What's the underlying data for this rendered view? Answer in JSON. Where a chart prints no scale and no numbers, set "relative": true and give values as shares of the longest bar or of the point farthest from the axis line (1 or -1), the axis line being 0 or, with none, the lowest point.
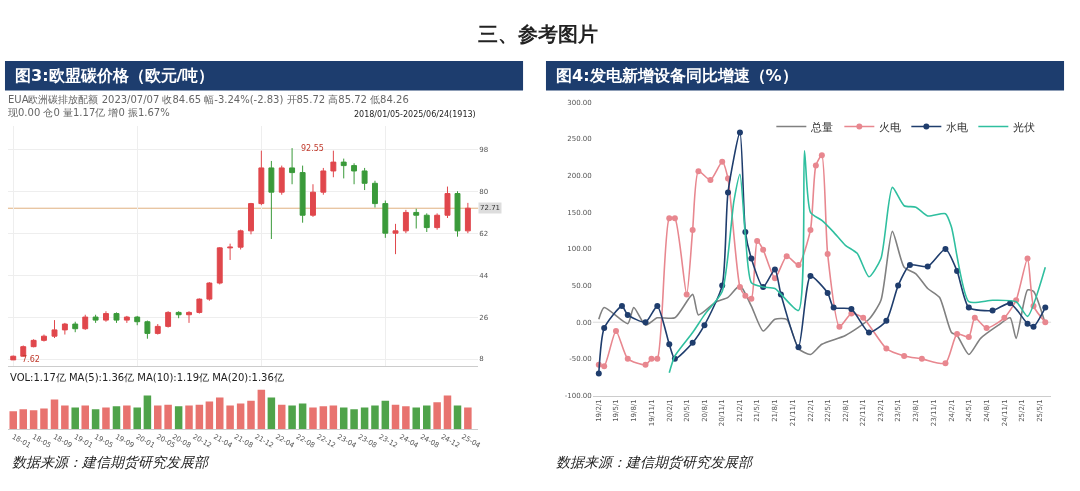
{
  "chart_data": [
    {
      "type": "candlestick",
      "title": "图3:欧盟碳价格（欧元/吨）",
      "subtitle": "EUA欧洲碳排放配额 2023/07/07 收84.65 幅-3.24%(-2.83) 开85.72 高85.72 低84.26 现0.00 仓0 量1.17亿 增0 振1.67%",
      "x": [
        "2018-01",
        "2018-03",
        "2018-05",
        "2018-07",
        "2018-09",
        "2018-11",
        "2019-01",
        "2019-03",
        "2019-05",
        "2019-07",
        "2019-09",
        "2019-11",
        "2020-01",
        "2020-03",
        "2020-05",
        "2020-07",
        "2020-09",
        "2020-11",
        "2021-01",
        "2021-03",
        "2021-05",
        "2021-07",
        "2021-09",
        "2021-11",
        "2022-01",
        "2022-03",
        "2022-05",
        "2022-07",
        "2022-09",
        "2022-11",
        "2023-01",
        "2023-03",
        "2023-05",
        "2023-07",
        "2023-09",
        "2023-11",
        "2024-01",
        "2024-03",
        "2024-05",
        "2024-07",
        "2024-09",
        "2024-11",
        "2025-01",
        "2025-03",
        "2025-05"
      ],
      "ohlc": [
        [
          7.62,
          9.5,
          7.62,
          9.2
        ],
        [
          9.2,
          13.8,
          9.0,
          13.3
        ],
        [
          13.3,
          16.5,
          13.0,
          16.0
        ],
        [
          16.0,
          18.5,
          15.5,
          17.8
        ],
        [
          17.8,
          24.7,
          17.0,
          20.5
        ],
        [
          20.5,
          23.5,
          18.5,
          23.0
        ],
        [
          23.0,
          24.0,
          19.5,
          21.0
        ],
        [
          21.0,
          27.0,
          20.5,
          26.0
        ],
        [
          26.0,
          27.0,
          23.5,
          24.7
        ],
        [
          24.7,
          28.5,
          24.0,
          27.5
        ],
        [
          27.5,
          28.0,
          23.5,
          24.7
        ],
        [
          24.7,
          26.5,
          23.5,
          26.0
        ],
        [
          26.0,
          26.5,
          22.5,
          24.0
        ],
        [
          24.0,
          24.5,
          16.7,
          19.0
        ],
        [
          19.0,
          23.0,
          18.5,
          22.0
        ],
        [
          22.0,
          28.5,
          21.5,
          28.0
        ],
        [
          28.0,
          28.5,
          25.5,
          27.0
        ],
        [
          27.0,
          28.5,
          23.5,
          28.0
        ],
        [
          28.0,
          34.0,
          27.5,
          33.7
        ],
        [
          33.7,
          41.0,
          33.0,
          40.6
        ],
        [
          40.6,
          56.0,
          40.0,
          55.7
        ],
        [
          55.7,
          57.5,
          50.5,
          56.0
        ],
        [
          56.0,
          63.5,
          55.0,
          63.0
        ],
        [
          63.0,
          75.0,
          61.5,
          74.7
        ],
        [
          74.7,
          97.4,
          74.0,
          90.0
        ],
        [
          90.0,
          93.0,
          59.5,
          79.6
        ],
        [
          79.6,
          91.0,
          78.5,
          90.0
        ],
        [
          90.0,
          98.5,
          83.0,
          88.0
        ],
        [
          88.0,
          91.0,
          66.5,
          69.7
        ],
        [
          69.7,
          83.0,
          69.0,
          79.6
        ],
        [
          79.6,
          90.0,
          78.5,
          88.7
        ],
        [
          88.7,
          97.4,
          86.0,
          92.5
        ],
        [
          92.5,
          94.0,
          85.5,
          91.0
        ],
        [
          91.0,
          92.0,
          83.0,
          88.7
        ],
        [
          88.7,
          90.0,
          80.5,
          83.4
        ],
        [
          83.4,
          84.5,
          73.0,
          74.7
        ],
        [
          74.7,
          76.0,
          60.0,
          62.0
        ],
        [
          62.0,
          66.0,
          53.0,
          63.0
        ],
        [
          63.0,
          72.0,
          62.0,
          70.9
        ],
        [
          70.9,
          72.5,
          64.0,
          69.7
        ],
        [
          69.7,
          70.5,
          62.5,
          64.4
        ],
        [
          64.4,
          70.5,
          63.5,
          69.7
        ],
        [
          69.7,
          82.0,
          68.5,
          79.0
        ],
        [
          79.0,
          80.0,
          60.5,
          63.0
        ],
        [
          63.0,
          75.0,
          62.0,
          72.71
        ]
      ],
      "xlim": [
        "2017-12",
        "2025-07"
      ],
      "ylim": [
        5,
        108
      ],
      "yticks": [
        8,
        26,
        44,
        62,
        80,
        98
      ],
      "grid": true,
      "tick_labels": "y",
      "ref_lines": [
        {
          "axis": "y",
          "value": 72.71,
          "label": "72.71",
          "color": "#e0b080"
        }
      ],
      "annotations": [
        "三、参考图片",
        "2018/01/05-2025/06/24(1913)",
        "数据来源：建信期货研究发展部",
        {
          "text": "7.62",
          "x": "2018-01",
          "y": 7.62
        },
        {
          "text": "92.55",
          "x": "2022-07",
          "y": 98.5
        }
      ]
    },
    {
      "type": "bar",
      "relative": true,
      "annotations": [
        "VOL:1.17亿 MA(5):1.36亿 MA(10):1.19亿 MA(20):1.36亿"
      ],
      "x": [
        "2018-01",
        "2018-03",
        "2018-05",
        "2018-07",
        "2018-09",
        "2018-11",
        "2019-01",
        "2019-03",
        "2019-05",
        "2019-07",
        "2019-09",
        "2019-11",
        "2020-01",
        "2020-03",
        "2020-05",
        "2020-07",
        "2020-09",
        "2020-11",
        "2021-01",
        "2021-03",
        "2021-05",
        "2021-07",
        "2021-09",
        "2021-11",
        "2022-01",
        "2022-03",
        "2022-05",
        "2022-07",
        "2022-09",
        "2022-11",
        "2023-01",
        "2023-03",
        "2023-05",
        "2023-07",
        "2023-09",
        "2023-11",
        "2024-01",
        "2024-03",
        "2024-05",
        "2024-07",
        "2024-09",
        "2024-11",
        "2025-01",
        "2025-03",
        "2025-05"
      ],
      "values": [
        0.45,
        0.5,
        0.48,
        0.52,
        0.75,
        0.6,
        0.55,
        0.6,
        0.5,
        0.55,
        0.58,
        0.6,
        0.55,
        0.85,
        0.6,
        0.62,
        0.58,
        0.6,
        0.62,
        0.7,
        0.8,
        0.6,
        0.65,
        0.72,
        1.0,
        0.8,
        0.62,
        0.6,
        0.65,
        0.55,
        0.58,
        0.6,
        0.55,
        0.5,
        0.55,
        0.6,
        0.72,
        0.62,
        0.58,
        0.55,
        0.6,
        0.68,
        0.85,
        0.6,
        0.55
      ],
      "colors": [
        "#e8736f",
        "#e8736f",
        "#e8736f",
        "#e8736f",
        "#e8736f",
        "#e8736f",
        "#4fa34a",
        "#e8736f",
        "#4fa34a",
        "#e8736f",
        "#4fa34a",
        "#e8736f",
        "#4fa34a",
        "#4fa34a",
        "#e8736f",
        "#e8736f",
        "#4fa34a",
        "#e8736f",
        "#e8736f",
        "#e8736f",
        "#e8736f",
        "#e8736f",
        "#e8736f",
        "#e8736f",
        "#e8736f",
        "#4fa34a",
        "#e8736f",
        "#4fa34a",
        "#4fa34a",
        "#e8736f",
        "#e8736f",
        "#e8736f",
        "#4fa34a",
        "#4fa34a",
        "#4fa34a",
        "#4fa34a",
        "#4fa34a",
        "#e8736f",
        "#e8736f",
        "#4fa34a",
        "#4fa34a",
        "#e8736f",
        "#e8736f",
        "#4fa34a",
        "#e8736f"
      ],
      "xlim": [
        "2017-12",
        "2025-07"
      ],
      "xticks": [
        {
          "value": "2018-01",
          "label": "18-01"
        },
        {
          "value": "2018-05",
          "label": "18-05"
        },
        {
          "value": "2018-09",
          "label": "18-09"
        },
        {
          "value": "2019-01",
          "label": "19-01"
        },
        {
          "value": "2019-05",
          "label": "19-05"
        },
        {
          "value": "2019-09",
          "label": "19-09"
        },
        {
          "value": "2020-01",
          "label": "20-01"
        },
        {
          "value": "2020-05",
          "label": "20-05"
        },
        {
          "value": "2020-08",
          "label": "20-08"
        },
        {
          "value": "2020-12",
          "label": "20-12"
        },
        {
          "value": "2021-04",
          "label": "21-04"
        },
        {
          "value": "2021-08",
          "label": "21-08"
        },
        {
          "value": "2021-12",
          "label": "21-12"
        },
        {
          "value": "2022-04",
          "label": "22-04"
        },
        {
          "value": "2022-08",
          "label": "22-08"
        },
        {
          "value": "2022-12",
          "label": "22-12"
        },
        {
          "value": "2023-04",
          "label": "23-04"
        },
        {
          "value": "2023-08",
          "label": "23-08"
        },
        {
          "value": "2023-12",
          "label": "23-12"
        },
        {
          "value": "2024-04",
          "label": "24-04"
        },
        {
          "value": "2024-08",
          "label": "24-08"
        },
        {
          "value": "2024-12",
          "label": "24-12"
        },
        {
          "value": "2025-04",
          "label": "25-04"
        }
      ]
    },
    {
      "type": "line",
      "title": "图4:发电新增设备同比增速（%）",
      "legend": "top right",
      "line_style": "solid",
      "annotations": [
        "数据来源：建信期货研究发展部"
      ],
      "series": [
        {
          "name": "总量",
          "color": "#808080",
          "x": [
            "2019-02",
            "2019-03",
            "2019-07",
            "2019-08",
            "2019-10",
            "2019-12",
            "2020-03",
            "2020-06",
            "2020-07",
            "2020-10",
            "2020-12",
            "2021-02",
            "2021-04",
            "2021-06",
            "2021-08",
            "2021-10",
            "2021-12",
            "2022-02",
            "2022-04",
            "2022-08",
            "2022-12",
            "2023-02",
            "2023-04",
            "2023-06",
            "2023-08",
            "2023-10",
            "2023-12",
            "2024-02",
            "2024-03",
            "2024-05",
            "2024-07",
            "2024-10",
            "2024-12",
            "2025-01",
            "2025-03",
            "2025-04",
            "2025-06"
          ],
          "values": [
            4,
            20,
            -2,
            20,
            -4,
            6,
            6,
            38,
            10,
            28,
            34,
            50,
            22,
            -12,
            4,
            4,
            -36,
            -44,
            -30,
            -18,
            4,
            30,
            124,
            75,
            66,
            46,
            34,
            -14,
            -18,
            -44,
            -22,
            -4,
            6,
            -22,
            44,
            42,
            -2
          ]
        },
        {
          "name": "火电",
          "color": "#e8878f",
          "marker": "circle",
          "x": [
            "2019-02",
            "2019-03",
            "2019-05",
            "2019-07",
            "2019-10",
            "2019-11",
            "2019-12",
            "2020-02",
            "2020-03",
            "2020-05",
            "2020-06",
            "2020-07",
            "2020-09",
            "2020-11",
            "2020-12",
            "2021-02",
            "2021-03",
            "2021-04",
            "2021-05",
            "2021-06",
            "2021-08",
            "2021-10",
            "2021-12",
            "2022-02",
            "2022-03",
            "2022-04",
            "2022-05",
            "2022-07",
            "2022-09",
            "2022-11",
            "2023-03",
            "2023-06",
            "2023-09",
            "2024-01",
            "2024-03",
            "2024-05",
            "2024-06",
            "2024-08",
            "2024-11",
            "2025-01",
            "2025-03",
            "2025-04",
            "2025-06"
          ],
          "values": [
            -58,
            -60,
            -12,
            -50,
            -58,
            -50,
            -50,
            142,
            142,
            38,
            126,
            206,
            194,
            219,
            196,
            48,
            36,
            32,
            111,
            99,
            60,
            90,
            78,
            126,
            214,
            228,
            93,
            -6,
            12,
            6,
            -36,
            -46,
            -50,
            -56,
            -16,
            -20,
            6,
            -8,
            6,
            30,
            87,
            22,
            0
          ]
        },
        {
          "name": "水电",
          "color": "#1f3d6d",
          "marker": "circle",
          "x": [
            "2019-02",
            "2019-03",
            "2019-06",
            "2019-07",
            "2019-10",
            "2019-12",
            "2020-02",
            "2020-03",
            "2020-06",
            "2020-08",
            "2020-11",
            "2020-12",
            "2021-02",
            "2021-03",
            "2021-04",
            "2021-06",
            "2021-08",
            "2021-09",
            "2021-12",
            "2022-02",
            "2022-05",
            "2022-06",
            "2022-09",
            "2022-12",
            "2023-03",
            "2023-05",
            "2023-07",
            "2023-10",
            "2024-01",
            "2024-03",
            "2024-05",
            "2024-09",
            "2024-12",
            "2025-03",
            "2025-04",
            "2025-06"
          ],
          "values": [
            -70,
            -8,
            22,
            10,
            0,
            22,
            -30,
            -50,
            -28,
            -4,
            50,
            177,
            259,
            123,
            87,
            48,
            72,
            38,
            -34,
            63,
            40,
            20,
            18,
            -14,
            2,
            50,
            78,
            76,
            100,
            70,
            20,
            16,
            26,
            -2,
            -6,
            20
          ]
        },
        {
          "name": "光伏",
          "color": "#2fbf9f",
          "x": [
            "2020-02",
            "2020-03",
            "2020-06",
            "2020-08",
            "2020-11",
            "2021-01",
            "2021-02",
            "2021-03",
            "2021-04",
            "2021-06",
            "2021-08",
            "2021-12",
            "2022-01",
            "2022-02",
            "2022-04",
            "2022-06",
            "2022-08",
            "2022-10",
            "2022-12",
            "2023-02",
            "2023-04",
            "2023-06",
            "2023-08",
            "2023-10",
            "2024-01",
            "2024-02",
            "2024-05",
            "2024-09",
            "2025-01",
            "2025-03",
            "2025-06"
          ],
          "values": [
            -69,
            -46,
            -14,
            10,
            42,
            166,
            202,
            118,
            54,
            48,
            46,
            16,
            234,
            150,
            139,
            123,
            105,
            94,
            62,
            87,
            184,
            159,
            157,
            145,
            148,
            130,
            28,
            30,
            28,
            8,
            75
          ]
        }
      ],
      "xlim": [
        "2019-01",
        "2025-07"
      ],
      "ylim": [
        -100,
        300
      ],
      "yticks": [
        {
          "value": -100,
          "label": "-100.00"
        },
        {
          "value": -50,
          "label": "-50.00"
        },
        {
          "value": 0,
          "label": "0.00"
        },
        {
          "value": 50,
          "label": "50.00"
        },
        {
          "value": 100,
          "label": "100.00"
        },
        {
          "value": 150,
          "label": "150.00"
        },
        {
          "value": 200,
          "label": "200.00"
        },
        {
          "value": 250,
          "label": "250.00"
        },
        {
          "value": 300,
          "label": "300.00"
        }
      ],
      "xticks": [
        {
          "value": "2019-02",
          "label": "19/2/1"
        },
        {
          "value": "2019-05",
          "label": "19/5/1"
        },
        {
          "value": "2019-08",
          "label": "19/8/1"
        },
        {
          "value": "2019-11",
          "label": "19/11/1"
        },
        {
          "value": "2020-02",
          "label": "20/2/1"
        },
        {
          "value": "2020-05",
          "label": "20/5/1"
        },
        {
          "value": "2020-08",
          "label": "20/8/1"
        },
        {
          "value": "2020-11",
          "label": "20/11/1"
        },
        {
          "value": "2021-02",
          "label": "21/2/1"
        },
        {
          "value": "2021-05",
          "label": "21/5/1"
        },
        {
          "value": "2021-08",
          "label": "21/8/1"
        },
        {
          "value": "2021-11",
          "label": "21/11/1"
        },
        {
          "value": "2022-02",
          "label": "22/2/1"
        },
        {
          "value": "2022-05",
          "label": "22/5/1"
        },
        {
          "value": "2022-08",
          "label": "22/8/1"
        },
        {
          "value": "2022-11",
          "label": "22/11/1"
        },
        {
          "value": "2023-02",
          "label": "23/2/1"
        },
        {
          "value": "2023-05",
          "label": "23/5/1"
        },
        {
          "value": "2023-08",
          "label": "23/8/1"
        },
        {
          "value": "2023-11",
          "label": "23/11/1"
        },
        {
          "value": "2024-02",
          "label": "24/2/1"
        },
        {
          "value": "2024-05",
          "label": "24/5/1"
        },
        {
          "value": "2024-08",
          "label": "24/8/1"
        },
        {
          "value": "2024-11",
          "label": "24/11/1"
        },
        {
          "value": "2025-02",
          "label": "25/2/1"
        },
        {
          "value": "2025-05",
          "label": "25/5/1"
        }
      ],
      "ref_lines": [
        {
          "axis": "y",
          "value": 0,
          "color": "#dcdcdc"
        }
      ]
    }
  ]
}
